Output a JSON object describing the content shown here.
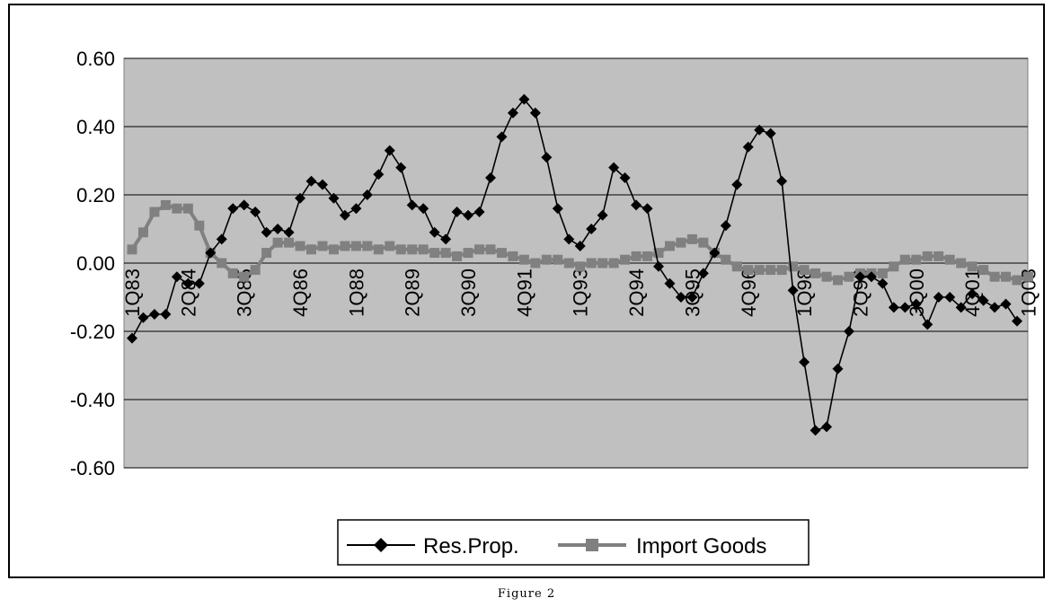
{
  "caption": "Figure 2",
  "chart_data": {
    "type": "line",
    "title": "",
    "xlabel": "",
    "ylabel": "",
    "ylim": [
      -0.6,
      0.6
    ],
    "y_ticks": [
      "0.60",
      "0.40",
      "0.20",
      "0.00",
      "-0.20",
      "-0.40",
      "-0.60"
    ],
    "y_tick_values": [
      0.6,
      0.4,
      0.2,
      0.0,
      -0.2,
      -0.4,
      -0.6
    ],
    "grid": "horizontal",
    "plot_background": "#c0c0c0",
    "legend_position": "bottom",
    "x_tick_labels": [
      "1Q83",
      "2Q84",
      "3Q85",
      "4Q86",
      "1Q88",
      "2Q89",
      "3Q90",
      "4Q91",
      "1Q93",
      "2Q94",
      "3Q95",
      "4Q96",
      "1Q98",
      "2Q99",
      "3Q00",
      "4Q01",
      "1Q03"
    ],
    "x_tick_indices": [
      0,
      5,
      10,
      15,
      20,
      25,
      30,
      35,
      40,
      45,
      50,
      55,
      60,
      65,
      70,
      75,
      80
    ],
    "series": [
      {
        "name": "Res.Prop.",
        "color": "#000000",
        "marker": "diamond",
        "values": [
          -0.22,
          -0.16,
          -0.15,
          -0.15,
          -0.04,
          -0.06,
          -0.06,
          0.03,
          0.07,
          0.16,
          0.17,
          0.15,
          0.09,
          0.1,
          0.09,
          0.19,
          0.24,
          0.23,
          0.19,
          0.14,
          0.16,
          0.2,
          0.26,
          0.33,
          0.28,
          0.17,
          0.16,
          0.09,
          0.07,
          0.15,
          0.14,
          0.15,
          0.25,
          0.37,
          0.44,
          0.48,
          0.44,
          0.31,
          0.16,
          0.07,
          0.05,
          0.1,
          0.14,
          0.28,
          0.25,
          0.17,
          0.16,
          -0.01,
          -0.06,
          -0.1,
          -0.1,
          -0.03,
          0.03,
          0.11,
          0.23,
          0.34,
          0.39,
          0.38,
          0.24,
          -0.08,
          -0.29,
          -0.49,
          -0.48,
          -0.31,
          -0.2,
          -0.04,
          -0.04,
          -0.06,
          -0.13,
          -0.13,
          -0.12,
          -0.18,
          -0.1,
          -0.1,
          -0.13,
          -0.09,
          -0.11,
          -0.13,
          -0.12,
          -0.17
        ]
      },
      {
        "name": "Import Goods",
        "color": "#808080",
        "marker": "square",
        "values": [
          0.04,
          0.09,
          0.15,
          0.17,
          0.16,
          0.16,
          0.11,
          0.03,
          0.0,
          -0.03,
          -0.04,
          -0.02,
          0.03,
          0.06,
          0.06,
          0.05,
          0.04,
          0.05,
          0.04,
          0.05,
          0.05,
          0.05,
          0.04,
          0.05,
          0.04,
          0.04,
          0.04,
          0.03,
          0.03,
          0.02,
          0.03,
          0.04,
          0.04,
          0.03,
          0.02,
          0.01,
          0.0,
          0.01,
          0.01,
          0.0,
          -0.01,
          0.0,
          0.0,
          0.0,
          0.01,
          0.02,
          0.02,
          0.03,
          0.05,
          0.06,
          0.07,
          0.06,
          0.03,
          0.01,
          -0.01,
          -0.02,
          -0.02,
          -0.02,
          -0.02,
          -0.01,
          -0.02,
          -0.03,
          -0.04,
          -0.05,
          -0.04,
          -0.03,
          -0.03,
          -0.03,
          -0.01,
          0.01,
          0.01,
          0.02,
          0.02,
          0.01,
          0.0,
          -0.01,
          -0.02,
          -0.04,
          -0.04,
          -0.05,
          -0.04
        ]
      }
    ]
  }
}
